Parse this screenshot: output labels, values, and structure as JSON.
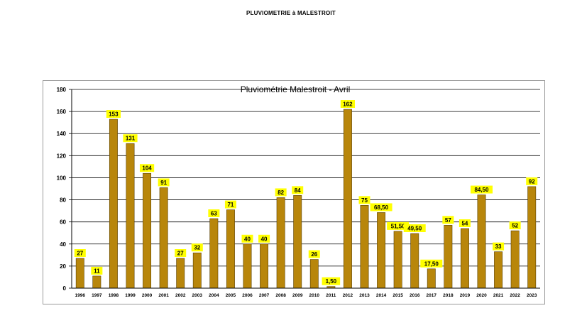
{
  "page": {
    "header": "PLUVIOMETRIE à MALESTROIT"
  },
  "chart_data": {
    "type": "bar",
    "title": "Pluviométrie Malestroit - Avril",
    "xlabel": "",
    "ylabel": "",
    "ylim": [
      0,
      180
    ],
    "yticks": [
      0,
      20,
      40,
      60,
      80,
      100,
      120,
      140,
      160,
      180
    ],
    "grid": true,
    "legend": "none",
    "bar_color": "#B8860B",
    "label_bg": "#FFFF00",
    "categories": [
      "1996",
      "1997",
      "1998",
      "1999",
      "2000",
      "2001",
      "2002",
      "2003",
      "2004",
      "2005",
      "2006",
      "2007",
      "2008",
      "2009",
      "2010",
      "2011",
      "2012",
      "2013",
      "2014",
      "2015",
      "2016",
      "2017",
      "2018",
      "2019",
      "2020",
      "2021",
      "2022",
      "2023"
    ],
    "values": [
      27,
      11,
      153,
      131,
      104,
      91,
      27,
      32,
      63,
      71,
      40,
      40,
      82,
      84,
      26,
      1.5,
      162,
      75,
      68.5,
      51.5,
      49.5,
      17.5,
      57,
      54,
      84.5,
      33,
      52,
      92
    ],
    "data_labels": [
      "27",
      "11",
      "153",
      "131",
      "104",
      "91",
      "27",
      "32",
      "63",
      "71",
      "40",
      "40",
      "82",
      "84",
      "26",
      "1,50",
      "162",
      "75",
      "68,50",
      "51,50",
      "49,50",
      "17,50",
      "57",
      "54",
      "84,50",
      "33",
      "52",
      "92"
    ]
  }
}
